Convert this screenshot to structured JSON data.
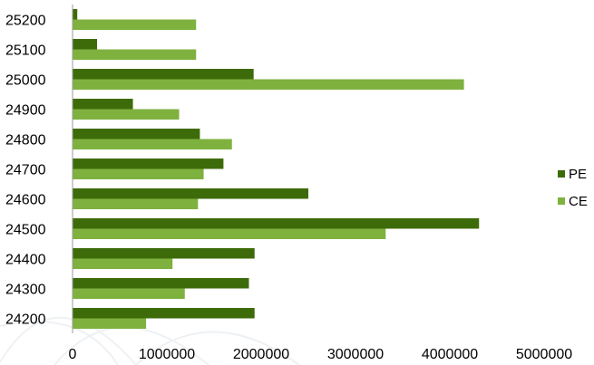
{
  "chart_data": {
    "type": "bar",
    "orientation": "horizontal",
    "categories": [
      "25200",
      "25100",
      "25000",
      "24900",
      "24800",
      "24700",
      "24600",
      "24500",
      "24400",
      "24300",
      "24200"
    ],
    "series": [
      {
        "name": "PE",
        "color": "#3E6B0A",
        "values": [
          50000,
          260000,
          1920000,
          640000,
          1350000,
          1600000,
          2500000,
          4310000,
          1930000,
          1870000,
          1930000
        ]
      },
      {
        "name": "CE",
        "color": "#7FB13F",
        "values": [
          1310000,
          1310000,
          4150000,
          1130000,
          1690000,
          1390000,
          1330000,
          3320000,
          1060000,
          1190000,
          780000
        ]
      }
    ],
    "xlim": [
      0,
      5000000
    ],
    "x_ticks": [
      "0",
      "1000000",
      "2000000",
      "3000000",
      "4000000",
      "5000000"
    ],
    "legend_position": "right",
    "grid": false
  }
}
